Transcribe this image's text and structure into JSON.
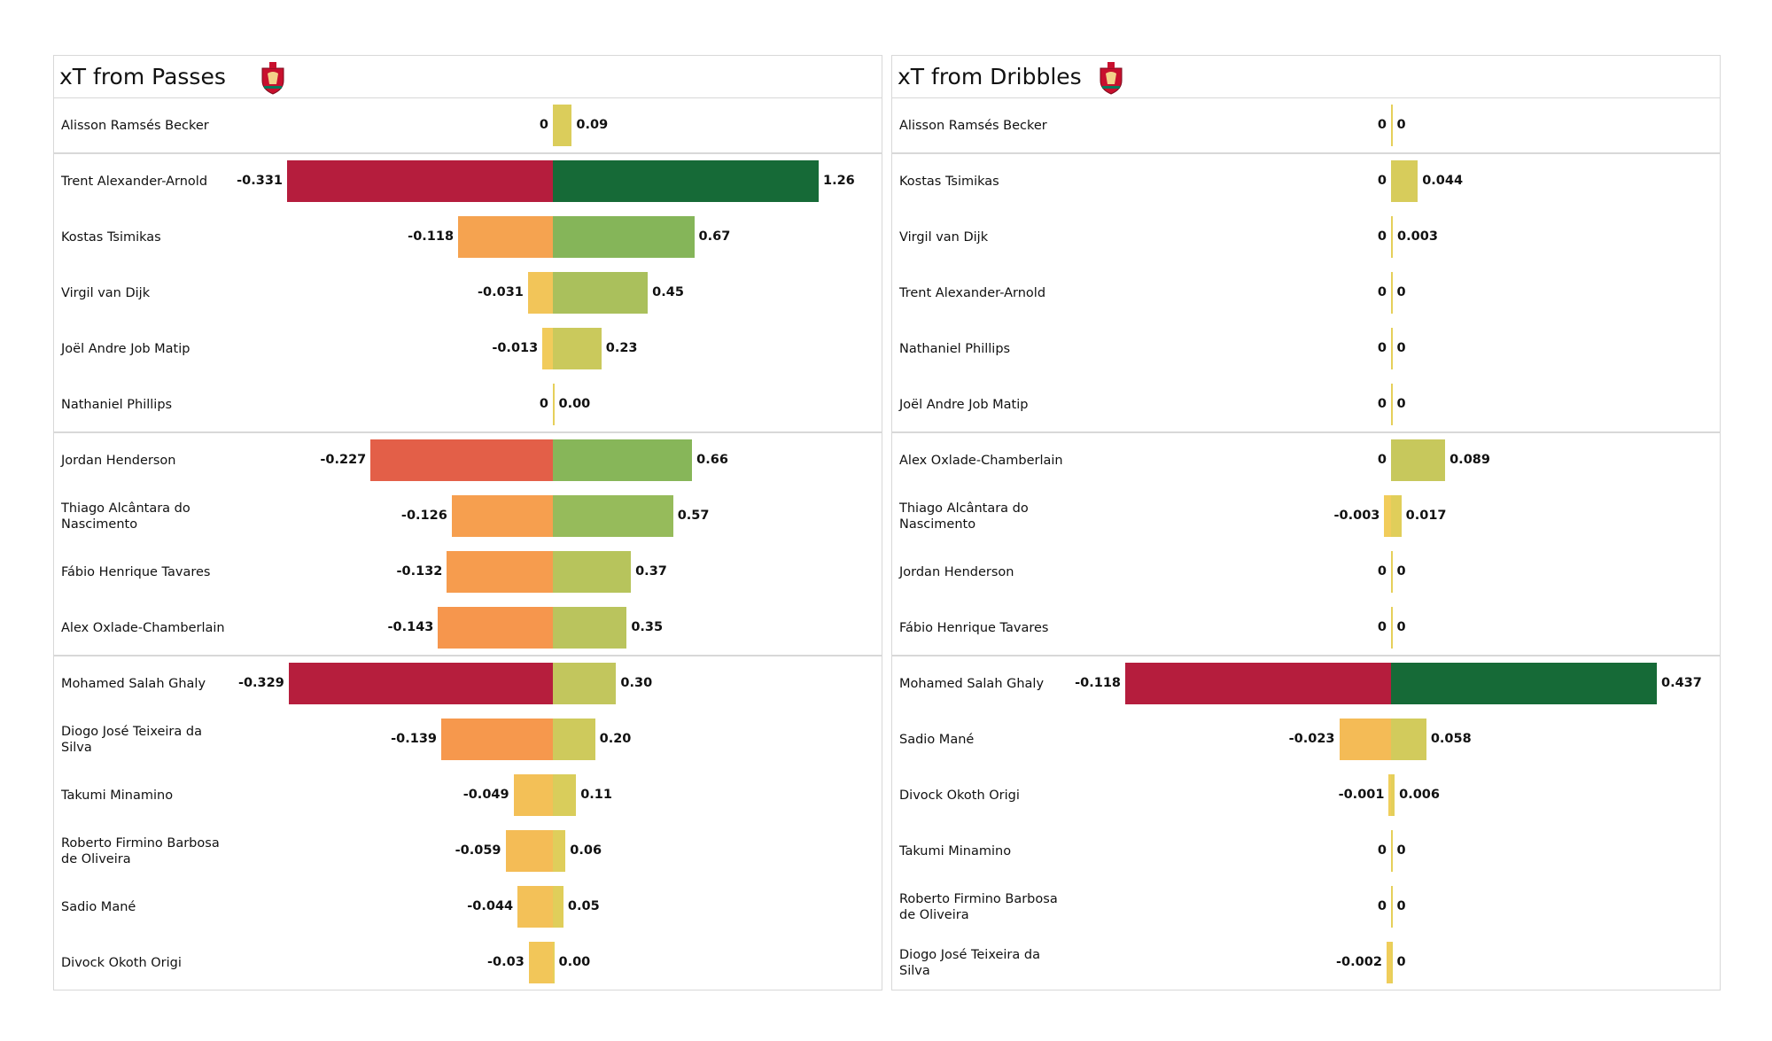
{
  "chart_data": [
    {
      "type": "diverging-bar",
      "title": "xT from Passes",
      "categories": [
        "Alisson Ramsés Becker",
        "Trent Alexander-Arnold",
        "Kostas Tsimikas",
        "Virgil van Dijk",
        "Joël Andre Job Matip",
        "Nathaniel Phillips",
        "Jordan Henderson",
        "Thiago Alcântara do Nascimento",
        "Fábio Henrique Tavares",
        "Alex Oxlade-Chamberlain",
        "Mohamed  Salah Ghaly",
        "Diogo José Teixeira da Silva",
        "Takumi Minamino",
        "Roberto Firmino Barbosa de Oliveira",
        "Sadio Mané",
        "Divock Okoth Origi"
      ],
      "series": [
        {
          "values": [
            0,
            -0.331,
            -0.118,
            -0.031,
            -0.013,
            0,
            -0.227,
            -0.126,
            -0.132,
            -0.143,
            -0.329,
            -0.139,
            -0.049,
            -0.059,
            -0.044,
            -0.03
          ]
        },
        {
          "values": [
            0.09,
            1.26,
            0.67,
            0.45,
            0.23,
            0,
            0.66,
            0.57,
            0.37,
            0.35,
            0.3,
            0.2,
            0.11,
            0.06,
            0.05,
            0
          ],
          "value_labels": [
            "0.09",
            "1.26",
            "0.67",
            "0.45",
            "0.23",
            "0.00",
            "0.66",
            "0.57",
            "0.37",
            "0.35",
            "0.30",
            "0.20",
            "0.11",
            "0.06",
            "0.05",
            "0.00"
          ]
        }
      ],
      "negative_colormap": [
        "#f0cf5c",
        "#f5b554",
        "#f68b4a",
        "#dc5047",
        "#b51d3d"
      ],
      "positive_colormap": [
        "#e6d05a",
        "#c0c65d",
        "#8cb85a",
        "#57a352",
        "#166a37"
      ]
    },
    {
      "type": "diverging-bar",
      "title": "xT from Dribbles",
      "categories": [
        "Alisson Ramsés Becker",
        "Kostas Tsimikas",
        "Virgil van Dijk",
        "Trent Alexander-Arnold",
        "Nathaniel Phillips",
        "Joël Andre Job Matip",
        "Alex Oxlade-Chamberlain",
        "Thiago Alcântara do Nascimento",
        "Jordan Henderson",
        "Fábio Henrique Tavares",
        "Mohamed  Salah Ghaly",
        "Sadio Mané",
        "Divock Okoth Origi",
        "Takumi Minamino",
        "Roberto Firmino Barbosa de Oliveira",
        "Diogo José Teixeira da Silva"
      ],
      "series": [
        {
          "values": [
            0,
            0,
            0,
            0,
            0,
            0,
            0,
            -0.003,
            0,
            0,
            -0.118,
            -0.023,
            -0.001,
            0,
            0,
            -0.002
          ]
        },
        {
          "values": [
            0,
            0.044,
            0.003,
            0,
            0,
            0,
            0.089,
            0.017,
            0,
            0,
            0.437,
            0.058,
            0.006,
            0,
            0,
            0
          ]
        }
      ],
      "negative_colormap": [
        "#f0cf5c",
        "#f5b554",
        "#f68b4a",
        "#dc5047",
        "#b51d3d"
      ],
      "positive_colormap": [
        "#e6d05a",
        "#c0c65d",
        "#8cb85a",
        "#57a352",
        "#166a37"
      ]
    }
  ]
}
